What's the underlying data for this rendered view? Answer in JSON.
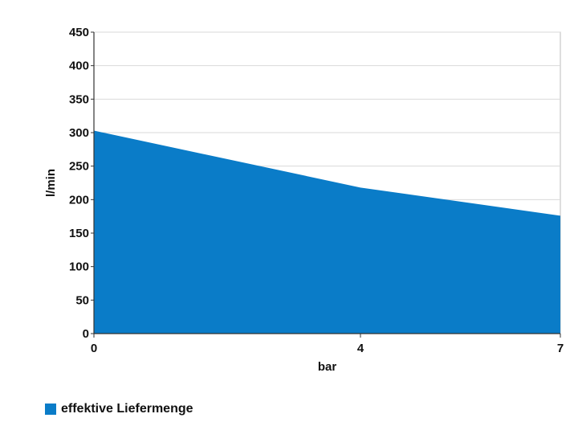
{
  "chart_data": {
    "type": "area",
    "x": [
      0,
      4,
      7
    ],
    "series": [
      {
        "name": "effektive Liefermenge",
        "values": [
          303,
          218,
          176
        ],
        "color": "#0a7cc8"
      }
    ],
    "xlabel": "bar",
    "ylabel": "l/min",
    "xticks": [
      "0",
      "4",
      "7"
    ],
    "yticks": [
      "0",
      "50",
      "100",
      "150",
      "200",
      "250",
      "300",
      "350",
      "400",
      "450"
    ],
    "xlim": [
      0,
      7
    ],
    "ylim": [
      0,
      450
    ],
    "grid": true,
    "legend_position": "bottom-left"
  },
  "colors": {
    "area_fill": "#0a7cc8",
    "grid": "#d9d9d9",
    "axis": "#333333"
  }
}
